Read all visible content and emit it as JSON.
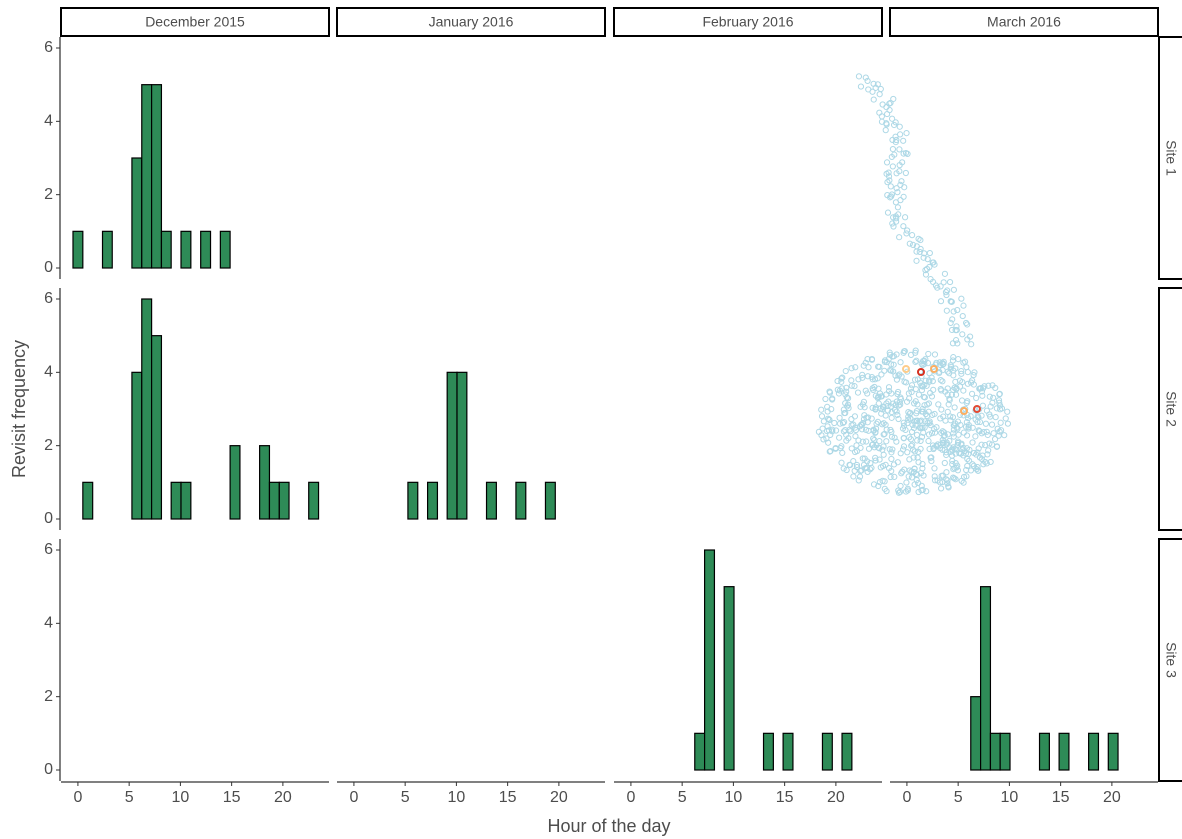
{
  "chart_data": {
    "type": "histogram",
    "x_label": "Hour of the day",
    "y_label": "Revisit frequency",
    "columns": [
      "December 2015",
      "January 2016",
      "February 2016",
      "March 2016"
    ],
    "rows": [
      "Site 1",
      "Site 2",
      "Site 3"
    ],
    "bins": [
      -0.48,
      0.48,
      1.44,
      2.4,
      3.35,
      4.31,
      5.27,
      6.23,
      7.19,
      8.15,
      9.1,
      10.06,
      11.02,
      11.98,
      12.94,
      13.9,
      14.85,
      15.81,
      16.77,
      17.73,
      18.69,
      19.65,
      20.6,
      21.56,
      22.52,
      23.48
    ],
    "counts": [
      [
        [
          1,
          0,
          0,
          1,
          0,
          0,
          3,
          5,
          5,
          1,
          0,
          1,
          0,
          1,
          0,
          1,
          0,
          0,
          0,
          0,
          0,
          0,
          0,
          0,
          0
        ],
        null,
        null,
        null
      ],
      [
        [
          0,
          1,
          0,
          0,
          0,
          0,
          4,
          6,
          5,
          0,
          1,
          1,
          0,
          0,
          0,
          0,
          2,
          0,
          0,
          2,
          1,
          1,
          0,
          0,
          1
        ],
        [
          0,
          0,
          0,
          0,
          0,
          0,
          1,
          0,
          1,
          0,
          4,
          4,
          0,
          0,
          1,
          0,
          0,
          1,
          0,
          0,
          1,
          0,
          0,
          0,
          0
        ],
        null,
        null
      ],
      [
        null,
        null,
        [
          0,
          0,
          0,
          0,
          0,
          0,
          0,
          1,
          6,
          0,
          5,
          0,
          0,
          0,
          1,
          0,
          1,
          0,
          0,
          0,
          1,
          0,
          1,
          0,
          0
        ],
        [
          0,
          0,
          0,
          0,
          0,
          0,
          0,
          2,
          5,
          1,
          1,
          0,
          0,
          0,
          1,
          0,
          1,
          0,
          0,
          1,
          0,
          1,
          0,
          0,
          0
        ]
      ]
    ],
    "color": "#2e8b57",
    "xlim": [
      -1.65,
      24.5
    ],
    "xticks": [
      0,
      5,
      10,
      15,
      20
    ],
    "ylim": [
      -0.3,
      6.3
    ],
    "yticks": [
      0,
      2,
      4,
      6
    ]
  }
}
